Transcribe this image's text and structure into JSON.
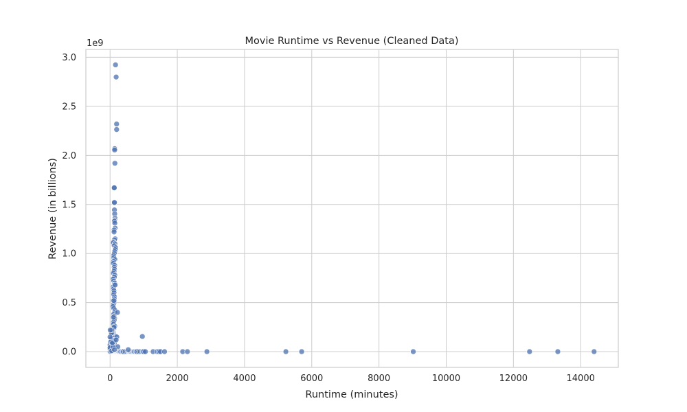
{
  "chart_data": {
    "type": "scatter",
    "title": "Movie Runtime vs Revenue (Cleaned Data)",
    "xlabel": "Runtime (minutes)",
    "ylabel": "Revenue (in billions)",
    "y_offset_label": "1e9",
    "xlim": [
      -720,
      15120
    ],
    "ylim": [
      -0.16,
      3.08
    ],
    "x_ticks": [
      0,
      2000,
      4000,
      6000,
      8000,
      10000,
      12000,
      14000
    ],
    "x_tick_labels": [
      "0",
      "2000",
      "4000",
      "6000",
      "8000",
      "10000",
      "12000",
      "14000"
    ],
    "y_ticks": [
      0,
      0.5,
      1.0,
      1.5,
      2.0,
      2.5,
      3.0
    ],
    "y_tick_labels": [
      "0.0",
      "0.5",
      "1.0",
      "1.5",
      "2.0",
      "2.5",
      "3.0"
    ],
    "grid": true,
    "point_color": "#4c72b0",
    "series": [
      {
        "x": [
          162,
          181,
          194,
          195,
          138,
          136,
          143,
          120,
          125,
          120,
          130,
          130,
          137,
          146,
          141,
          129,
          141,
          150,
          120,
          119,
          150,
          130,
          102,
          98,
          143,
          124,
          165,
          154,
          136,
          127,
          108,
          112,
          142,
          105,
          95,
          135,
          125,
          130,
          118,
          100,
          140,
          126,
          91,
          110,
          133,
          121,
          96,
          104,
          115,
          118,
          107,
          128,
          123,
          90,
          117,
          99,
          86,
          112,
          145,
          138,
          106,
          116,
          133,
          122,
          103,
          101,
          139,
          119,
          94,
          92,
          109,
          147,
          132,
          88,
          111,
          126,
          85,
          114,
          97,
          160,
          220,
          118,
          100,
          102,
          93,
          120,
          90,
          128,
          105,
          112,
          96,
          135,
          80,
          60,
          30,
          10,
          0,
          0,
          0,
          20,
          40,
          50,
          70,
          95,
          108,
          125,
          140,
          155,
          168,
          180,
          195,
          210,
          230,
          240,
          250,
          260,
          280,
          300,
          320,
          350,
          380,
          400,
          450,
          500,
          540,
          560,
          580,
          600,
          620,
          650,
          680,
          700,
          720,
          750,
          780,
          800,
          850,
          900,
          950,
          980,
          1000,
          1050,
          1280,
          1400,
          1450,
          1500,
          1620,
          2160,
          2300,
          2880,
          5230,
          5700,
          9020,
          12480,
          13320,
          14400,
          540,
          960,
          20,
          0,
          0,
          50,
          90,
          5,
          70,
          100,
          115,
          150,
          200,
          230,
          180,
          130
        ],
        "y": [
          2.923,
          2.799,
          2.32,
          2.264,
          2.069,
          2.056,
          1.92,
          1.671,
          1.67,
          1.52,
          1.52,
          1.445,
          1.405,
          1.36,
          1.34,
          1.33,
          1.31,
          1.26,
          1.24,
          1.22,
          1.15,
          1.14,
          1.12,
          1.11,
          1.1,
          1.08,
          1.06,
          1.04,
          1.02,
          1.0,
          0.98,
          0.96,
          0.94,
          0.92,
          0.9,
          0.88,
          0.86,
          0.84,
          0.82,
          0.8,
          0.78,
          0.76,
          0.74,
          0.72,
          0.7,
          0.68,
          0.66,
          0.64,
          0.62,
          0.6,
          0.58,
          0.56,
          0.54,
          0.52,
          0.5,
          0.48,
          0.46,
          0.44,
          0.42,
          0.4,
          0.38,
          0.36,
          0.34,
          0.32,
          0.3,
          0.28,
          0.26,
          0.24,
          0.22,
          0.2,
          0.18,
          0.16,
          0.14,
          0.12,
          0.1,
          0.08,
          0.06,
          0.05,
          0.04,
          0.03,
          0.4,
          0.25,
          0.15,
          0.1,
          0.05,
          0.02,
          0.01,
          0.03,
          0.02,
          0.01,
          0.04,
          0.12,
          0.2,
          0.19,
          0.13,
          0.05,
          0.02,
          0.0,
          0.07,
          0.1,
          0.19,
          0.22,
          0.08,
          0.01,
          0.0,
          0.0,
          0.0,
          0.0,
          0.0,
          0.0,
          0.0,
          0.0,
          0.0,
          0.0,
          0.0,
          0.0,
          0.0,
          0.0,
          0.0,
          0.0,
          0.0,
          0.0,
          0.0,
          0.0,
          0.0,
          0.0,
          0.0,
          0.0,
          0.0,
          0.0,
          0.0,
          0.0,
          0.0,
          0.0,
          0.0,
          0.0,
          0.0,
          0.0,
          0.0,
          0.0,
          0.0,
          0.0,
          0.0,
          0.0,
          0.0,
          0.0,
          0.0,
          0.0,
          0.0,
          0.0,
          0.0,
          0.0,
          0.0,
          0.0,
          0.0,
          0.0,
          0.02,
          0.155,
          0.005,
          0.04,
          0.15,
          0.01,
          0.05,
          0.22,
          0.09,
          0.35,
          0.52,
          0.68,
          0.15,
          0.05,
          0.12,
          0.02
        ]
      }
    ]
  }
}
